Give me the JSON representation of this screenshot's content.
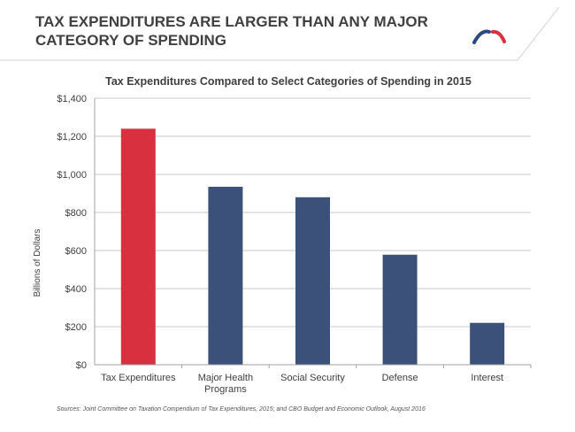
{
  "slide": {
    "title_lines": [
      "TAX EXPENDITURES ARE LARGER THAN ANY MAJOR",
      "CATEGORY OF SPENDING"
    ],
    "source": "Sources: Joint Committee on Taxation Compendium of Tax Expenditures, 2015; and CBO Budget and Economic Outlook, August 2016",
    "logo_colors": [
      "#2e4a7d",
      "#d93040"
    ]
  },
  "chart_data": {
    "type": "bar",
    "title": "Tax Expenditures Compared to Select Categories of Spending in 2015",
    "ylabel": "Billions of Dollars",
    "xlabel": "",
    "categories": [
      [
        "Tax Expenditures"
      ],
      [
        "Major Health",
        "Programs"
      ],
      [
        "Social Security"
      ],
      [
        "Defense"
      ],
      [
        "Interest"
      ]
    ],
    "values": [
      1240,
      935,
      880,
      578,
      220
    ],
    "bar_colors": [
      "#d93040",
      "#3b5179",
      "#3b5179",
      "#3b5179",
      "#3b5179"
    ],
    "ylim": [
      0,
      1400
    ],
    "yticks": [
      0,
      200,
      400,
      600,
      800,
      1000,
      1200,
      1400
    ],
    "ytick_labels": [
      "$0",
      "$200",
      "$400",
      "$600",
      "$800",
      "$1,000",
      "$1,200",
      "$1,400"
    ],
    "grid": true
  }
}
